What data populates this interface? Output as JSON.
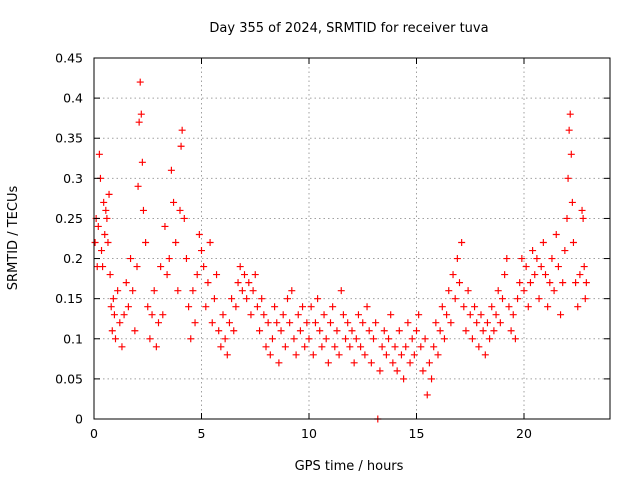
{
  "chart_data": {
    "type": "scatter",
    "title": "Day 355 of 2024, SRMTID for receiver tuva",
    "xlabel": "GPS time / hours",
    "ylabel": "SRMTID / TECUs",
    "xlim": [
      0,
      24
    ],
    "ylim": [
      0,
      0.45
    ],
    "grid": true,
    "marker": "+",
    "color": "#ff0000",
    "x_ticks": [
      0,
      5,
      10,
      15,
      20
    ],
    "x_tick_labels": [
      "0",
      "5",
      "10",
      "15",
      "20"
    ],
    "y_ticks": [
      0,
      0.05,
      0.1,
      0.15,
      0.2,
      0.25,
      0.3,
      0.35,
      0.4,
      0.45
    ],
    "y_tick_labels": [
      "0",
      "0.05",
      "0.1",
      "0.15",
      "0.2",
      "0.25",
      "0.3",
      "0.35",
      "0.4",
      "0.45"
    ],
    "series": [
      {
        "name": "SRMTID",
        "points": [
          [
            0.05,
            0.22
          ],
          [
            0.1,
            0.25
          ],
          [
            0.15,
            0.19
          ],
          [
            0.2,
            0.24
          ],
          [
            0.25,
            0.33
          ],
          [
            0.3,
            0.3
          ],
          [
            0.35,
            0.21
          ],
          [
            0.4,
            0.19
          ],
          [
            0.45,
            0.27
          ],
          [
            0.5,
            0.23
          ],
          [
            0.55,
            0.26
          ],
          [
            0.6,
            0.25
          ],
          [
            0.65,
            0.22
          ],
          [
            0.7,
            0.28
          ],
          [
            0.75,
            0.18
          ],
          [
            0.8,
            0.14
          ],
          [
            0.85,
            0.11
          ],
          [
            0.9,
            0.15
          ],
          [
            0.95,
            0.13
          ],
          [
            1.0,
            0.1
          ],
          [
            1.1,
            0.16
          ],
          [
            1.2,
            0.12
          ],
          [
            1.3,
            0.09
          ],
          [
            1.4,
            0.13
          ],
          [
            1.5,
            0.17
          ],
          [
            1.6,
            0.14
          ],
          [
            1.7,
            0.2
          ],
          [
            1.8,
            0.16
          ],
          [
            1.9,
            0.11
          ],
          [
            2.0,
            0.19
          ],
          [
            2.05,
            0.29
          ],
          [
            2.1,
            0.37
          ],
          [
            2.15,
            0.42
          ],
          [
            2.2,
            0.38
          ],
          [
            2.25,
            0.32
          ],
          [
            2.3,
            0.26
          ],
          [
            2.4,
            0.22
          ],
          [
            2.5,
            0.14
          ],
          [
            2.6,
            0.1
          ],
          [
            2.7,
            0.13
          ],
          [
            2.8,
            0.16
          ],
          [
            2.9,
            0.09
          ],
          [
            3.0,
            0.12
          ],
          [
            3.1,
            0.19
          ],
          [
            3.2,
            0.13
          ],
          [
            3.3,
            0.24
          ],
          [
            3.4,
            0.18
          ],
          [
            3.5,
            0.2
          ],
          [
            3.6,
            0.31
          ],
          [
            3.7,
            0.27
          ],
          [
            3.8,
            0.22
          ],
          [
            3.9,
            0.16
          ],
          [
            4.0,
            0.26
          ],
          [
            4.05,
            0.34
          ],
          [
            4.1,
            0.36
          ],
          [
            4.2,
            0.25
          ],
          [
            4.3,
            0.2
          ],
          [
            4.4,
            0.14
          ],
          [
            4.5,
            0.1
          ],
          [
            4.6,
            0.16
          ],
          [
            4.7,
            0.12
          ],
          [
            4.8,
            0.18
          ],
          [
            4.9,
            0.23
          ],
          [
            5.0,
            0.21
          ],
          [
            5.1,
            0.19
          ],
          [
            5.2,
            0.14
          ],
          [
            5.3,
            0.17
          ],
          [
            5.4,
            0.22
          ],
          [
            5.5,
            0.12
          ],
          [
            5.6,
            0.15
          ],
          [
            5.7,
            0.18
          ],
          [
            5.8,
            0.11
          ],
          [
            5.9,
            0.09
          ],
          [
            6.0,
            0.13
          ],
          [
            6.1,
            0.1
          ],
          [
            6.2,
            0.08
          ],
          [
            6.3,
            0.12
          ],
          [
            6.4,
            0.15
          ],
          [
            6.5,
            0.11
          ],
          [
            6.6,
            0.14
          ],
          [
            6.7,
            0.17
          ],
          [
            6.8,
            0.19
          ],
          [
            6.9,
            0.16
          ],
          [
            7.0,
            0.18
          ],
          [
            7.1,
            0.15
          ],
          [
            7.2,
            0.17
          ],
          [
            7.3,
            0.13
          ],
          [
            7.4,
            0.16
          ],
          [
            7.5,
            0.18
          ],
          [
            7.6,
            0.14
          ],
          [
            7.7,
            0.11
          ],
          [
            7.8,
            0.15
          ],
          [
            7.9,
            0.13
          ],
          [
            8.0,
            0.09
          ],
          [
            8.1,
            0.12
          ],
          [
            8.2,
            0.08
          ],
          [
            8.3,
            0.1
          ],
          [
            8.4,
            0.14
          ],
          [
            8.5,
            0.12
          ],
          [
            8.6,
            0.07
          ],
          [
            8.7,
            0.11
          ],
          [
            8.8,
            0.13
          ],
          [
            8.9,
            0.09
          ],
          [
            9.0,
            0.15
          ],
          [
            9.1,
            0.12
          ],
          [
            9.2,
            0.16
          ],
          [
            9.3,
            0.1
          ],
          [
            9.4,
            0.08
          ],
          [
            9.5,
            0.13
          ],
          [
            9.6,
            0.11
          ],
          [
            9.7,
            0.14
          ],
          [
            9.8,
            0.09
          ],
          [
            9.9,
            0.12
          ],
          [
            10.0,
            0.1
          ],
          [
            10.1,
            0.14
          ],
          [
            10.2,
            0.08
          ],
          [
            10.3,
            0.12
          ],
          [
            10.4,
            0.15
          ],
          [
            10.5,
            0.11
          ],
          [
            10.6,
            0.09
          ],
          [
            10.7,
            0.13
          ],
          [
            10.8,
            0.1
          ],
          [
            10.9,
            0.07
          ],
          [
            11.0,
            0.12
          ],
          [
            11.1,
            0.14
          ],
          [
            11.2,
            0.09
          ],
          [
            11.3,
            0.11
          ],
          [
            11.4,
            0.08
          ],
          [
            11.5,
            0.16
          ],
          [
            11.6,
            0.13
          ],
          [
            11.7,
            0.1
          ],
          [
            11.8,
            0.12
          ],
          [
            11.9,
            0.09
          ],
          [
            12.0,
            0.11
          ],
          [
            12.1,
            0.07
          ],
          [
            12.2,
            0.1
          ],
          [
            12.3,
            0.13
          ],
          [
            12.4,
            0.09
          ],
          [
            12.5,
            0.12
          ],
          [
            12.6,
            0.08
          ],
          [
            12.7,
            0.14
          ],
          [
            12.8,
            0.11
          ],
          [
            12.9,
            0.07
          ],
          [
            13.0,
            0.1
          ],
          [
            13.1,
            0.12
          ],
          [
            13.2,
            0.0
          ],
          [
            13.3,
            0.06
          ],
          [
            13.4,
            0.09
          ],
          [
            13.5,
            0.11
          ],
          [
            13.6,
            0.08
          ],
          [
            13.7,
            0.1
          ],
          [
            13.8,
            0.13
          ],
          [
            13.9,
            0.07
          ],
          [
            14.0,
            0.09
          ],
          [
            14.1,
            0.06
          ],
          [
            14.2,
            0.11
          ],
          [
            14.3,
            0.08
          ],
          [
            14.4,
            0.05
          ],
          [
            14.5,
            0.09
          ],
          [
            14.6,
            0.12
          ],
          [
            14.7,
            0.07
          ],
          [
            14.8,
            0.1
          ],
          [
            14.9,
            0.08
          ],
          [
            15.0,
            0.11
          ],
          [
            15.1,
            0.13
          ],
          [
            15.2,
            0.09
          ],
          [
            15.3,
            0.06
          ],
          [
            15.4,
            0.1
          ],
          [
            15.5,
            0.03
          ],
          [
            15.6,
            0.07
          ],
          [
            15.7,
            0.05
          ],
          [
            15.8,
            0.09
          ],
          [
            15.9,
            0.12
          ],
          [
            16.0,
            0.08
          ],
          [
            16.1,
            0.11
          ],
          [
            16.2,
            0.14
          ],
          [
            16.3,
            0.1
          ],
          [
            16.4,
            0.13
          ],
          [
            16.5,
            0.16
          ],
          [
            16.6,
            0.12
          ],
          [
            16.7,
            0.18
          ],
          [
            16.8,
            0.15
          ],
          [
            16.9,
            0.2
          ],
          [
            17.0,
            0.17
          ],
          [
            17.1,
            0.22
          ],
          [
            17.2,
            0.14
          ],
          [
            17.3,
            0.11
          ],
          [
            17.4,
            0.16
          ],
          [
            17.5,
            0.13
          ],
          [
            17.6,
            0.1
          ],
          [
            17.7,
            0.14
          ],
          [
            17.8,
            0.12
          ],
          [
            17.9,
            0.09
          ],
          [
            18.0,
            0.13
          ],
          [
            18.1,
            0.11
          ],
          [
            18.2,
            0.08
          ],
          [
            18.3,
            0.12
          ],
          [
            18.4,
            0.1
          ],
          [
            18.5,
            0.14
          ],
          [
            18.6,
            0.11
          ],
          [
            18.7,
            0.13
          ],
          [
            18.8,
            0.16
          ],
          [
            18.9,
            0.12
          ],
          [
            19.0,
            0.15
          ],
          [
            19.1,
            0.18
          ],
          [
            19.2,
            0.2
          ],
          [
            19.3,
            0.14
          ],
          [
            19.4,
            0.11
          ],
          [
            19.5,
            0.13
          ],
          [
            19.6,
            0.1
          ],
          [
            19.7,
            0.15
          ],
          [
            19.8,
            0.17
          ],
          [
            19.9,
            0.2
          ],
          [
            20.0,
            0.16
          ],
          [
            20.1,
            0.19
          ],
          [
            20.2,
            0.14
          ],
          [
            20.3,
            0.17
          ],
          [
            20.4,
            0.21
          ],
          [
            20.5,
            0.18
          ],
          [
            20.6,
            0.2
          ],
          [
            20.7,
            0.15
          ],
          [
            20.8,
            0.19
          ],
          [
            20.9,
            0.22
          ],
          [
            21.0,
            0.18
          ],
          [
            21.1,
            0.14
          ],
          [
            21.2,
            0.17
          ],
          [
            21.3,
            0.2
          ],
          [
            21.4,
            0.16
          ],
          [
            21.5,
            0.23
          ],
          [
            21.6,
            0.19
          ],
          [
            21.7,
            0.13
          ],
          [
            21.8,
            0.17
          ],
          [
            21.9,
            0.21
          ],
          [
            22.0,
            0.25
          ],
          [
            22.05,
            0.3
          ],
          [
            22.1,
            0.36
          ],
          [
            22.15,
            0.38
          ],
          [
            22.2,
            0.33
          ],
          [
            22.25,
            0.27
          ],
          [
            22.3,
            0.22
          ],
          [
            22.4,
            0.17
          ],
          [
            22.5,
            0.14
          ],
          [
            22.6,
            0.18
          ],
          [
            22.7,
            0.26
          ],
          [
            22.75,
            0.25
          ],
          [
            22.8,
            0.19
          ],
          [
            22.85,
            0.15
          ],
          [
            22.9,
            0.17
          ]
        ]
      }
    ]
  }
}
